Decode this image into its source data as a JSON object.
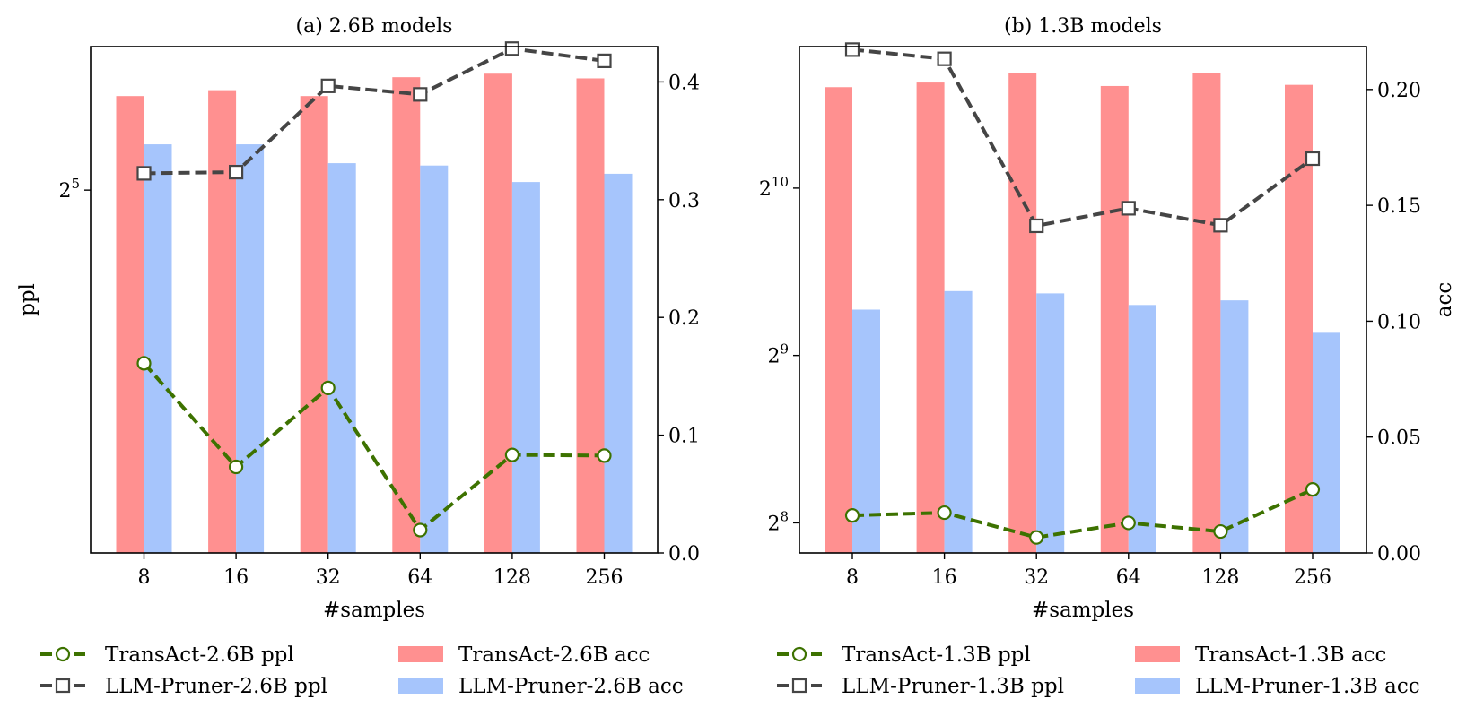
{
  "chart_data": [
    {
      "type": "bar",
      "title": "(a) 2.6B models",
      "xlabel": "#samples",
      "ylabel": "ppl",
      "y2label": "",
      "categories": [
        "8",
        "16",
        "32",
        "64",
        "128",
        "256"
      ],
      "ppl_scale": "log2",
      "ppl_ylim": [
        20.05,
        38.5
      ],
      "ppl_ticks": [
        {
          "base": "2",
          "exp": "5",
          "value": 32
        }
      ],
      "acc_ylim": [
        0.0,
        0.43
      ],
      "acc_ticks": [
        "0.0",
        "0.1",
        "0.2",
        "0.3",
        "0.4"
      ],
      "acc_tick_values": [
        0.0,
        0.1,
        0.2,
        0.3,
        0.4
      ],
      "series": [
        {
          "name": "TransAct-2.6B ppl",
          "kind": "line",
          "axis": "ppl",
          "color": "#3d7200",
          "marker": "circle",
          "values": [
            25.6,
            22.4,
            24.8,
            20.65,
            22.75,
            22.73
          ]
        },
        {
          "name": "LLM-Pruner-2.6B ppl",
          "kind": "line",
          "axis": "ppl",
          "color": "#454545",
          "marker": "square",
          "values": [
            32.7,
            32.75,
            36.6,
            36.2,
            38.4,
            37.8
          ]
        },
        {
          "name": "TransAct-2.6B acc",
          "kind": "bar",
          "axis": "acc",
          "color": "#ff9090",
          "values": [
            0.388,
            0.393,
            0.388,
            0.404,
            0.407,
            0.403
          ]
        },
        {
          "name": "LLM-Pruner-2.6B acc",
          "kind": "bar",
          "axis": "acc",
          "color": "#a6c5fc",
          "values": [
            0.347,
            0.347,
            0.331,
            0.329,
            0.315,
            0.322
          ]
        }
      ],
      "legend_placement": "below"
    },
    {
      "type": "bar",
      "title": "(b) 1.3B models",
      "xlabel": "#samples",
      "ylabel": "",
      "y2label": "acc",
      "categories": [
        "8",
        "16",
        "32",
        "64",
        "128",
        "256"
      ],
      "ppl_scale": "log2",
      "ppl_ylim": [
        226,
        1840
      ],
      "ppl_ticks": [
        {
          "base": "2",
          "exp": "8",
          "value": 256
        },
        {
          "base": "2",
          "exp": "9",
          "value": 512
        },
        {
          "base": "2",
          "exp": "10",
          "value": 1024
        }
      ],
      "acc_ylim": [
        0.0,
        0.2185
      ],
      "acc_ticks": [
        "0.00",
        "0.05",
        "0.10",
        "0.15",
        "0.20"
      ],
      "acc_tick_values": [
        0.0,
        0.05,
        0.1,
        0.15,
        0.2
      ],
      "series": [
        {
          "name": "TransAct-1.3B ppl",
          "kind": "line",
          "axis": "ppl",
          "color": "#3d7200",
          "marker": "circle",
          "values": [
            264,
            267,
            241,
            256,
            247,
            294
          ]
        },
        {
          "name": "LLM-Pruner-1.3B ppl",
          "kind": "line",
          "axis": "ppl",
          "color": "#454545",
          "marker": "square",
          "values": [
            1817,
            1749,
            876,
            942,
            878,
            1157
          ]
        },
        {
          "name": "TransAct-1.3B acc",
          "kind": "bar",
          "axis": "acc",
          "color": "#ff9090",
          "values": [
            0.201,
            0.203,
            0.207,
            0.2015,
            0.207,
            0.202
          ]
        },
        {
          "name": "LLM-Pruner-1.3B acc",
          "kind": "bar",
          "axis": "acc",
          "color": "#a6c5fc",
          "values": [
            0.105,
            0.113,
            0.112,
            0.107,
            0.109,
            0.095
          ]
        }
      ],
      "legend_placement": "below"
    }
  ]
}
